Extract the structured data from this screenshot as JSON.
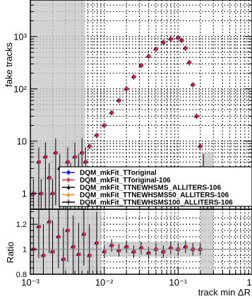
{
  "chart_data": {
    "type": "scatter",
    "top_panel": {
      "ylabel": "fake tracks",
      "y_scale": "log",
      "ylim": [
        0.5,
        5000
      ],
      "y_ticks": [
        {
          "value": 1,
          "label": "1"
        },
        {
          "value": 10,
          "label": "10"
        },
        {
          "value": 100,
          "label": "10²"
        },
        {
          "value": 1000,
          "label": "10³"
        }
      ],
      "grid": true
    },
    "bottom_panel": {
      "ylabel": "Ratio",
      "ylim": [
        0.8,
        1.32
      ],
      "y_ticks": [
        {
          "value": 0.8,
          "label": "0.8"
        },
        {
          "value": 1.0,
          "label": "1"
        },
        {
          "value": 1.2,
          "label": "1.2"
        }
      ],
      "grid": true
    },
    "x_axis": {
      "xlabel": "track min ΔR",
      "x_scale": "log",
      "xlim": [
        0.001,
        1.0
      ],
      "x_ticks": [
        {
          "value": 0.001,
          "label": "10⁻³"
        },
        {
          "value": 0.01,
          "label": "10⁻²"
        },
        {
          "value": 0.1,
          "label": "10⁻¹"
        },
        {
          "value": 1.0,
          "label": "1"
        }
      ]
    },
    "legend_position": "center-right",
    "series": [
      {
        "name": "DQM_mkFit_TToriginal",
        "color": "#1c1cd6",
        "marker": "square"
      },
      {
        "name": "DQM_mkFit_TToriginal-106",
        "color": "#e8202a",
        "marker": "circle"
      },
      {
        "name": "DQM_mkFit_TTNEWHSMS_ALLITERS-106",
        "color": "#000000",
        "marker": "triangle"
      },
      {
        "name": "DQM_mkFit_TTNEWHSMS50_ALLITERS-106",
        "color": "#ee8a1c",
        "marker": "triangle"
      },
      {
        "name": "DQM_mkFit_TTNEWHSMS100_ALLITERS-106",
        "color": "#000000",
        "marker": "cross"
      }
    ],
    "main_x": [
      0.0063,
      0.0079,
      0.01,
      0.0126,
      0.0158,
      0.02,
      0.0251,
      0.0316,
      0.0398,
      0.0501,
      0.0631,
      0.0794,
      0.1,
      0.1122,
      0.1259,
      0.1413,
      0.1585,
      0.1778,
      0.1995
    ],
    "main_y": [
      8,
      13,
      20,
      35,
      60,
      100,
      170,
      280,
      420,
      580,
      780,
      900,
      950,
      850,
      600,
      320,
      120,
      30,
      8
    ],
    "tail_left_x": [
      0.0011,
      0.0013,
      0.0014,
      0.0016,
      0.0018,
      0.002,
      0.0022,
      0.0025,
      0.0028,
      0.0032,
      0.0035,
      0.004,
      0.0045,
      0.005,
      0.0056
    ],
    "tail_left_y": [
      1,
      4,
      1,
      5,
      2,
      1,
      6,
      3,
      1,
      4,
      2,
      5,
      3,
      6,
      4
    ],
    "tail_right_x": [
      0.22,
      0.25,
      0.28
    ],
    "tail_right_y": [
      3,
      1,
      1
    ],
    "ratio_x": [
      0.0011,
      0.0013,
      0.0015,
      0.0018,
      0.002,
      0.0024,
      0.0028,
      0.0032,
      0.0038,
      0.0045,
      0.0053,
      0.0063,
      0.0079,
      0.01,
      0.0126,
      0.0158,
      0.02,
      0.0251,
      0.0316,
      0.0398,
      0.0501,
      0.0631,
      0.0794,
      0.1,
      0.1259,
      0.1585,
      0.1995
    ],
    "ratio_y": [
      1.0,
      1.18,
      0.95,
      1.22,
      0.98,
      1.1,
      0.92,
      1.15,
      1.02,
      0.96,
      1.12,
      0.95,
      1.05,
      0.98,
      1.03,
      0.99,
      1.02,
      0.98,
      1.01,
      0.97,
      1.0,
      0.98,
      1.01,
      1.0,
      1.02,
      1.0,
      1.0
    ]
  }
}
